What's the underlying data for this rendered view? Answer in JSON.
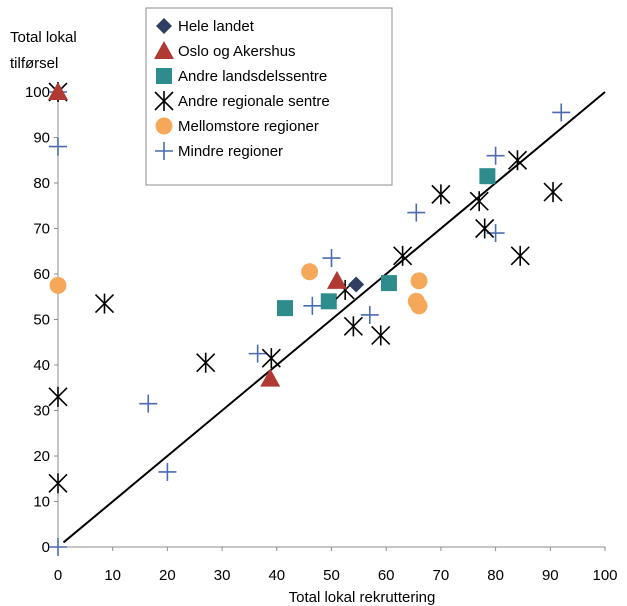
{
  "chart_data": {
    "type": "scatter",
    "title": "",
    "xlabel": "Total lokal rekruttering",
    "ylabel": "Total lokal tilførsel",
    "ylabel_lines": [
      "Total lokal",
      "tilførsel"
    ],
    "xlim": [
      0,
      100
    ],
    "ylim": [
      0,
      100
    ],
    "xticks": [
      "0",
      "10",
      "20",
      "30",
      "40",
      "50",
      "60",
      "70",
      "80",
      "90",
      "100"
    ],
    "yticks": [
      "0",
      "10",
      "20",
      "30",
      "40",
      "50",
      "60",
      "70",
      "80",
      "90",
      "100"
    ],
    "grid": false,
    "legend_position": "top-center",
    "reference_line": {
      "from": [
        1,
        1
      ],
      "to": [
        100,
        100
      ],
      "color": "#000000"
    },
    "series": [
      {
        "name": "Hele landet",
        "marker": "diamond",
        "color": "#2e3f63",
        "points": [
          [
            54.5,
            57.7
          ]
        ]
      },
      {
        "name": "Oslo og Akershus",
        "marker": "triangle",
        "color": "#b03a33",
        "points": [
          [
            0,
            100
          ],
          [
            51,
            58.5
          ],
          [
            38.8,
            37
          ]
        ]
      },
      {
        "name": "Andre landsdelssentre",
        "marker": "square",
        "color": "#2f8c8c",
        "points": [
          [
            41.5,
            52.5
          ],
          [
            49.5,
            54
          ],
          [
            60.5,
            58
          ],
          [
            78.5,
            81.5
          ]
        ]
      },
      {
        "name": "Andre regionale sentre",
        "marker": "asterisk",
        "color": "#000000",
        "points": [
          [
            0,
            100
          ],
          [
            8.5,
            53.5
          ],
          [
            0,
            33
          ],
          [
            0,
            14
          ],
          [
            27,
            40.5
          ],
          [
            39,
            41.5
          ],
          [
            52.5,
            56.5
          ],
          [
            54,
            48.5
          ],
          [
            59,
            46.5
          ],
          [
            63,
            64
          ],
          [
            70,
            77.5
          ],
          [
            77,
            76
          ],
          [
            78,
            70
          ],
          [
            84,
            85
          ],
          [
            84.5,
            64
          ],
          [
            90.5,
            78
          ]
        ]
      },
      {
        "name": "Mellomstore regioner",
        "marker": "circle",
        "color": "#f5a85a",
        "points": [
          [
            0,
            57.5
          ],
          [
            46,
            60.5
          ],
          [
            65.5,
            54
          ],
          [
            66,
            53
          ],
          [
            66,
            58.5
          ]
        ]
      },
      {
        "name": "Mindre regioner",
        "marker": "plus",
        "color": "#4a6bb0",
        "points": [
          [
            0,
            100
          ],
          [
            0,
            88
          ],
          [
            0,
            0
          ],
          [
            16.5,
            31.5
          ],
          [
            20,
            16.5
          ],
          [
            36.5,
            42.5
          ],
          [
            46.5,
            53
          ],
          [
            50,
            63.5
          ],
          [
            57,
            51
          ],
          [
            65.5,
            73.5
          ],
          [
            80,
            86
          ],
          [
            80,
            69
          ],
          [
            92,
            95.5
          ]
        ]
      }
    ]
  }
}
